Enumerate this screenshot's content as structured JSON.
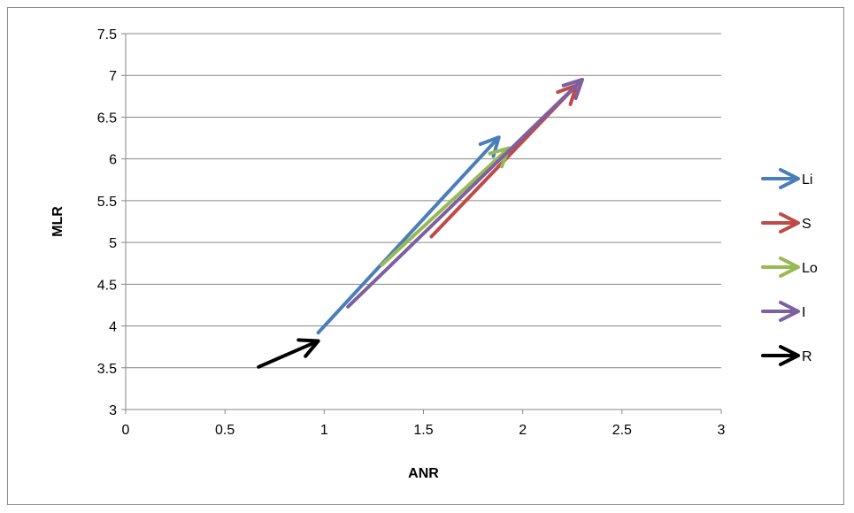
{
  "chart_data": {
    "type": "vector",
    "title": "",
    "xlabel": "ANR",
    "ylabel": "MLR",
    "xlim": [
      0,
      3
    ],
    "ylim": [
      3,
      7.5
    ],
    "xticks": [
      "0",
      "0.5",
      "1",
      "1.5",
      "2",
      "2.5",
      "3"
    ],
    "yticks": [
      "3",
      "3.5",
      "4",
      "4.5",
      "5",
      "5.5",
      "6",
      "6.5",
      "7",
      "7.5"
    ],
    "grid": "horizontal",
    "legend": "right",
    "series": [
      {
        "name": "Li",
        "color": "#4a7ebb",
        "from": [
          0.97,
          3.92
        ],
        "to": [
          1.88,
          6.26
        ]
      },
      {
        "name": "S",
        "color": "#be4b48",
        "from": [
          1.54,
          5.07
        ],
        "to": [
          2.27,
          6.88
        ]
      },
      {
        "name": "Lo",
        "color": "#98b954",
        "from": [
          1.29,
          4.73
        ],
        "to": [
          1.93,
          6.13
        ]
      },
      {
        "name": "I",
        "color": "#7d60a0",
        "from": [
          1.12,
          4.23
        ],
        "to": [
          2.3,
          6.95
        ]
      },
      {
        "name": "R",
        "color": "#000000",
        "from": [
          0.67,
          3.51
        ],
        "to": [
          0.97,
          3.82
        ]
      }
    ]
  }
}
